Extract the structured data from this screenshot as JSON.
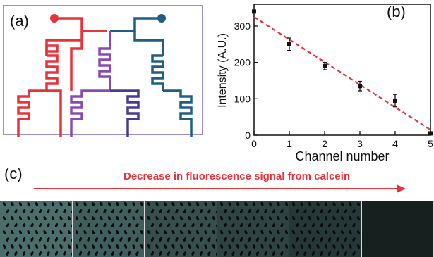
{
  "panels": {
    "a": {
      "label": "(a)"
    },
    "b": {
      "label": "(b)"
    },
    "c": {
      "label": "(c)"
    }
  },
  "colors": {
    "red": "#e8333a",
    "purple": "#8a4bb0",
    "indigo": "#4b3a90",
    "teal": "#1f5f82",
    "border": "#9b8fc8",
    "fit": "#e8333a"
  },
  "caption": "Decrease in fluorescence signal from calcein",
  "chart_data": {
    "type": "scatter",
    "xlabel": "Channel number",
    "ylabel": "Intensity (A.U.)",
    "xlim": [
      0,
      5
    ],
    "ylim": [
      0,
      360
    ],
    "x_ticks": [
      0,
      1,
      2,
      3,
      4,
      5
    ],
    "y_ticks": [
      0,
      100,
      200,
      300
    ],
    "points": [
      {
        "x": 0,
        "y": 340,
        "err": 0
      },
      {
        "x": 1,
        "y": 250,
        "err": 17
      },
      {
        "x": 2,
        "y": 190,
        "err": 10
      },
      {
        "x": 3,
        "y": 135,
        "err": 13
      },
      {
        "x": 4,
        "y": 95,
        "err": 17
      },
      {
        "x": 5,
        "y": 5,
        "err": 0
      }
    ],
    "fit_line": {
      "x": [
        0,
        5
      ],
      "y": [
        325,
        15
      ],
      "style": "dashed"
    },
    "grid": false
  },
  "micrographs": {
    "count": 6,
    "brightness": [
      0.42,
      0.36,
      0.3,
      0.26,
      0.21,
      0.12
    ]
  }
}
